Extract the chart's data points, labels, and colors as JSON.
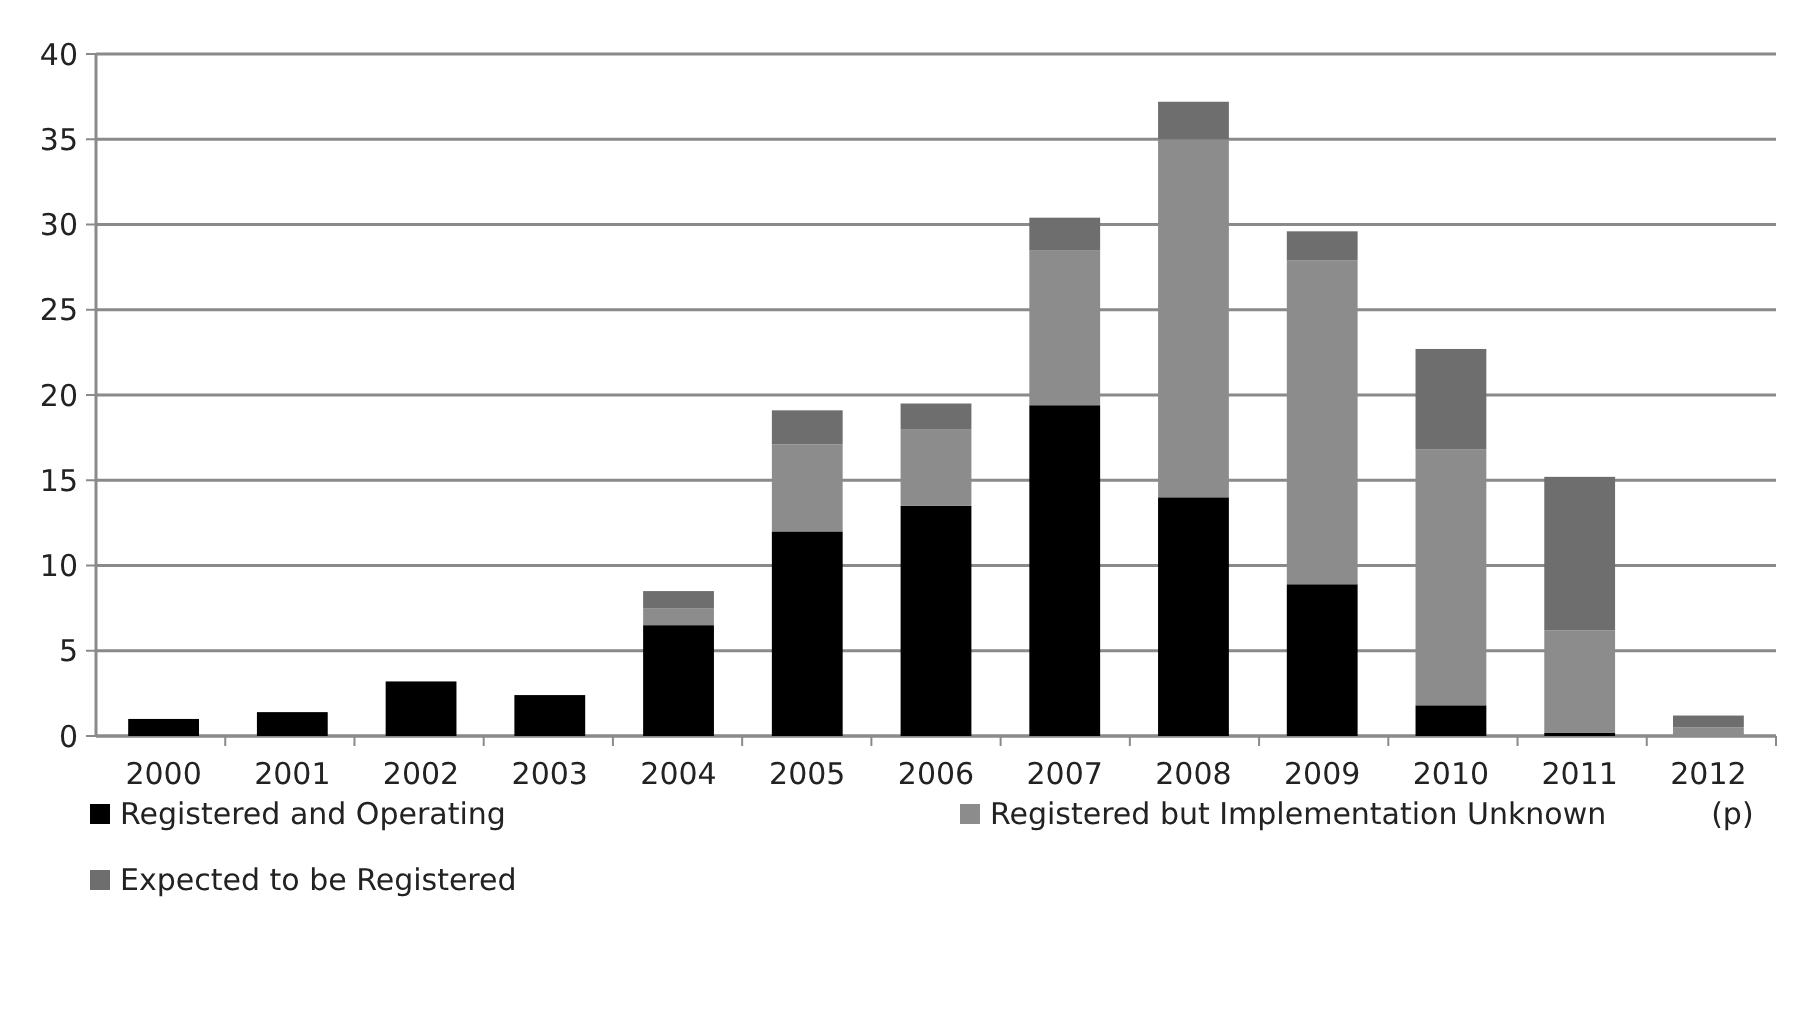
{
  "chart_data": {
    "type": "bar",
    "stacked": true,
    "categories": [
      "2000",
      "2001",
      "2002",
      "2003",
      "2004",
      "2005",
      "2006",
      "2007",
      "2008",
      "2009",
      "2010",
      "2011",
      "2012\n(p)"
    ],
    "series": [
      {
        "name": "Registered and Operating",
        "color": "#000000",
        "values": [
          1,
          1.4,
          3.2,
          2.4,
          6.5,
          12,
          13.5,
          19.4,
          14,
          8.9,
          1.8,
          0.2,
          0
        ]
      },
      {
        "name": "Registered but Implementation Unknown",
        "color": "#8c8c8c",
        "values": [
          0,
          0,
          0,
          0,
          1,
          5.1,
          4.5,
          9.1,
          21,
          19,
          15,
          6,
          0.5
        ]
      },
      {
        "name": "Expected to be Registered",
        "color": "#6e6e6e",
        "values": [
          0,
          0,
          0,
          0,
          1,
          2,
          1.5,
          1.9,
          2.2,
          1.7,
          5.9,
          9,
          0.7
        ]
      }
    ],
    "ylim": [
      0,
      40
    ],
    "yticks": [
      0,
      5,
      10,
      15,
      20,
      25,
      30,
      35,
      40
    ],
    "grid": "y",
    "legend": "bottom"
  }
}
